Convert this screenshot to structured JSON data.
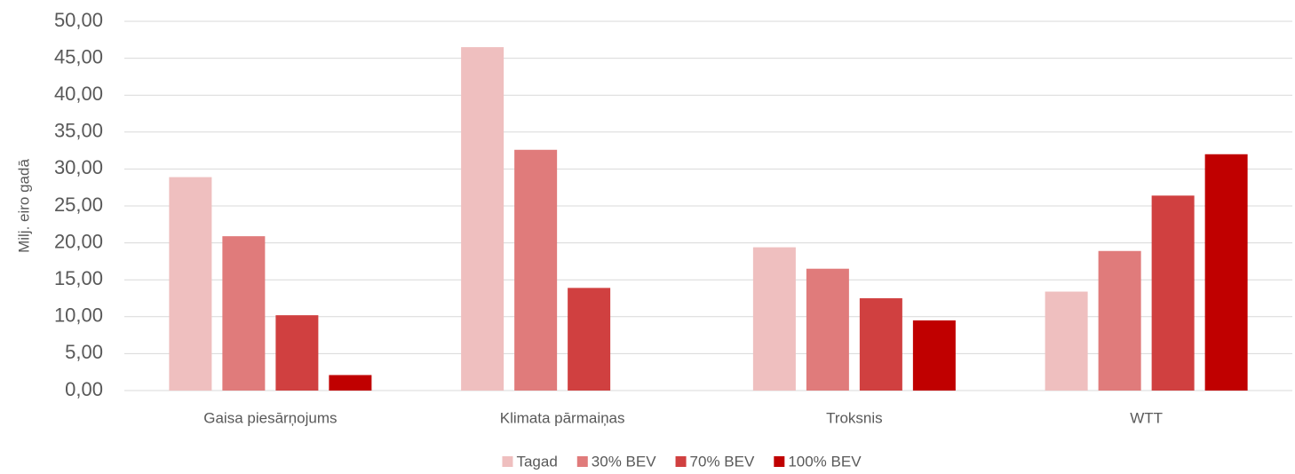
{
  "chart_data": {
    "type": "bar",
    "y_label": "Milj. eiro gadā",
    "categories": [
      "Gaisa piesārņojums",
      "Klimata pārmaiņas",
      "Troksnis",
      "WTT"
    ],
    "series": [
      {
        "name": "Tagad",
        "color": "#efbfbf",
        "values": [
          28.9,
          46.5,
          19.4,
          13.4
        ]
      },
      {
        "name": "30% BEV",
        "color": "#e07b7b",
        "values": [
          20.9,
          32.6,
          16.5,
          18.9
        ]
      },
      {
        "name": "70% BEV",
        "color": "#d04040",
        "values": [
          10.2,
          13.9,
          12.5,
          26.4
        ]
      },
      {
        "name": "100% BEV",
        "color": "#c00000",
        "values": [
          2.1,
          0,
          9.5,
          32
        ]
      }
    ],
    "ylim": [
      0,
      50
    ],
    "yticks": [
      {
        "value": 0,
        "label": "0,00"
      },
      {
        "value": 5,
        "label": "5,00"
      },
      {
        "value": 10,
        "label": "10,00"
      },
      {
        "value": 15,
        "label": "15,00"
      },
      {
        "value": 20,
        "label": "20,00"
      },
      {
        "value": 25,
        "label": "25,00"
      },
      {
        "value": 30,
        "label": "30,00"
      },
      {
        "value": 35,
        "label": "35,00"
      },
      {
        "value": 40,
        "label": "40,00"
      },
      {
        "value": 45,
        "label": "45,00"
      },
      {
        "value": 50,
        "label": "50,00"
      }
    ],
    "grid": true,
    "legend": "bottom"
  }
}
